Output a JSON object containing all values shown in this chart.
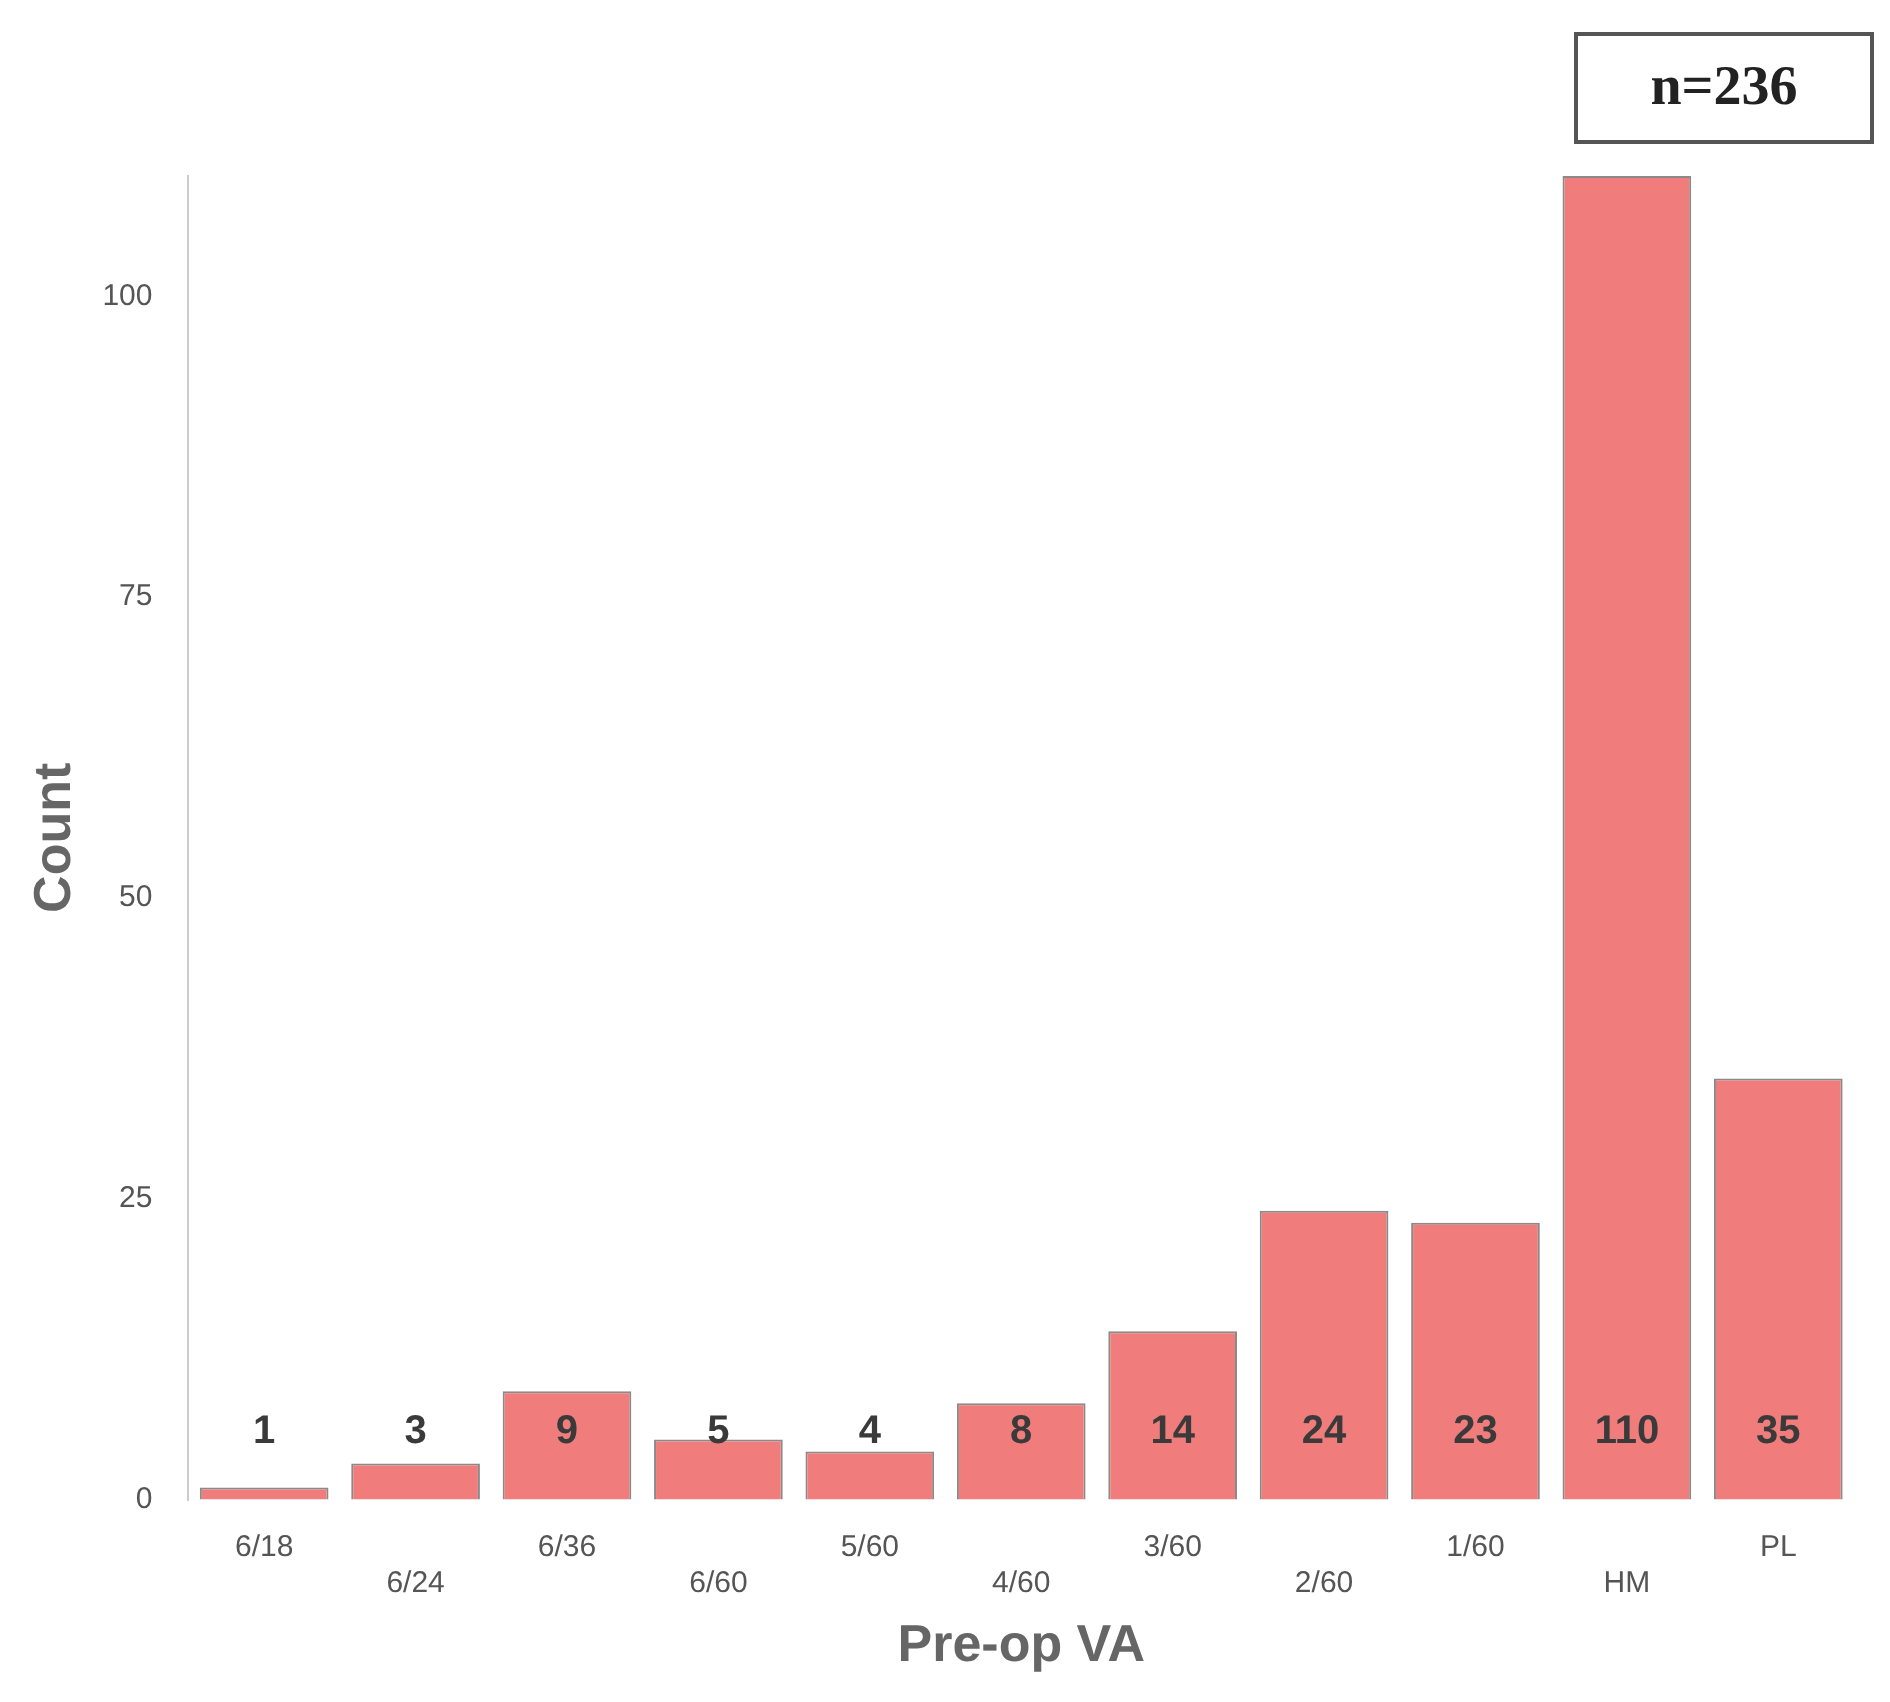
{
  "chart_data": {
    "type": "bar",
    "categories": [
      "6/18",
      "6/24",
      "6/36",
      "6/60",
      "5/60",
      "4/60",
      "3/60",
      "2/60",
      "1/60",
      "HM",
      "PL"
    ],
    "values": [
      1,
      3,
      9,
      5,
      4,
      8,
      14,
      24,
      23,
      110,
      35
    ],
    "color": "#f07c7c",
    "xlabel": "Pre-op VA",
    "ylabel": "Count",
    "ylim": [
      0,
      110
    ],
    "yticks": [
      0,
      25,
      50,
      75,
      100
    ],
    "grid": false,
    "legend": false,
    "data_labels": true,
    "annotations": [
      "n=236"
    ]
  }
}
